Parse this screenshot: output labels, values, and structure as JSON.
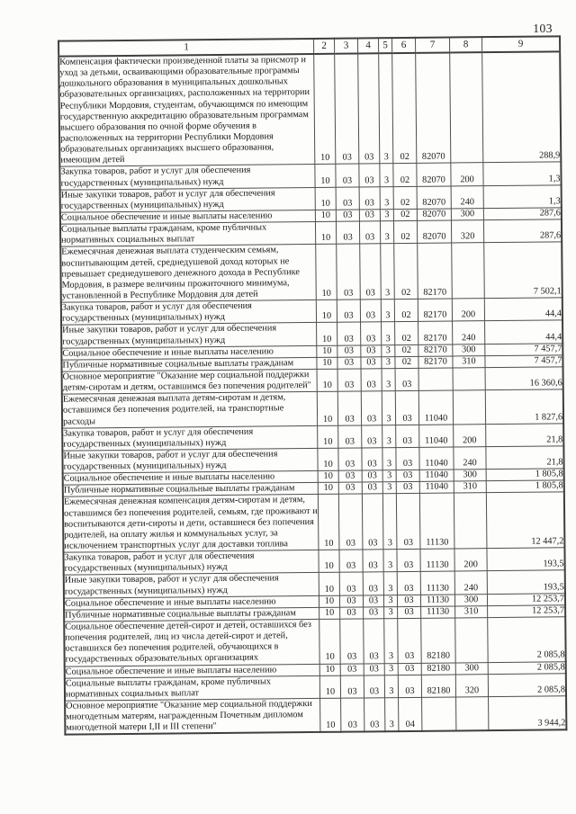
{
  "page": {
    "number": "103"
  },
  "table": {
    "columns": [
      "1",
      "2",
      "3",
      "4",
      "5",
      "6",
      "7",
      "8",
      "9"
    ],
    "rows": [
      {
        "label": "Компенсация фактически произведенной платы за присмотр и уход за детьми, осваивающими образовательные программы дошкольного образования в муниципальных дошкольных образовательных организациях, расположенных на территории Республики Мордовия, студентам, обучающимся по имеющим государственную аккредитацию образовательным программам высшего образования по очной форме обучения в расположенных на территории Республики Мордовия образовательных организациях высшего образования, имеющим детей",
        "c2": "10",
        "c3": "03",
        "c4": "03",
        "c5": "3",
        "c6": "02",
        "c7": "82070",
        "c8": "",
        "c9": "288,9"
      },
      {
        "label": "Закупка товаров, работ и услуг для обеспечения государственных (муниципальных) нужд",
        "c2": "10",
        "c3": "03",
        "c4": "03",
        "c5": "3",
        "c6": "02",
        "c7": "82070",
        "c8": "200",
        "c9": "1,3"
      },
      {
        "label": "Иные закупки товаров, работ и услуг для обеспечения государственных (муниципальных) нужд",
        "c2": "10",
        "c3": "03",
        "c4": "03",
        "c5": "3",
        "c6": "02",
        "c7": "82070",
        "c8": "240",
        "c9": "1,3"
      },
      {
        "label": "Социальное обеспечение и иные выплаты населению",
        "c2": "10",
        "c3": "03",
        "c4": "03",
        "c5": "3",
        "c6": "02",
        "c7": "82070",
        "c8": "300",
        "c9": "287,6"
      },
      {
        "label": "Социальные выплаты гражданам, кроме публичных нормативных социальных выплат",
        "c2": "10",
        "c3": "03",
        "c4": "03",
        "c5": "3",
        "c6": "02",
        "c7": "82070",
        "c8": "320",
        "c9": "287,6"
      },
      {
        "label": "Ежемесячная денежная выплата студенческим семьям, воспитывающим детей, среднедушевой доход которых не превышает среднедушевого денежного дохода в Республике Мордовия, в размере величины прожиточного минимума, установленной в Республике Мордовия для детей",
        "c2": "10",
        "c3": "03",
        "c4": "03",
        "c5": "3",
        "c6": "02",
        "c7": "82170",
        "c8": "",
        "c9": "7 502,1"
      },
      {
        "label": "Закупка товаров, работ и услуг для обеспечения государственных (муниципальных) нужд",
        "c2": "10",
        "c3": "03",
        "c4": "03",
        "c5": "3",
        "c6": "02",
        "c7": "82170",
        "c8": "200",
        "c9": "44,4"
      },
      {
        "label": "Иные закупки товаров, работ и услуг для обеспечения государственных (муниципальных) нужд",
        "c2": "10",
        "c3": "03",
        "c4": "03",
        "c5": "3",
        "c6": "02",
        "c7": "82170",
        "c8": "240",
        "c9": "44,4"
      },
      {
        "label": "Социальное обеспечение и иные выплаты населению",
        "c2": "10",
        "c3": "03",
        "c4": "03",
        "c5": "3",
        "c6": "02",
        "c7": "82170",
        "c8": "300",
        "c9": "7 457,7"
      },
      {
        "label": "Публичные нормативные социальные выплаты гражданам",
        "c2": "10",
        "c3": "03",
        "c4": "03",
        "c5": "3",
        "c6": "02",
        "c7": "82170",
        "c8": "310",
        "c9": "7 457,7"
      },
      {
        "label": "Основное мероприятие \"Оказание мер социальной поддержки детям-сиротам и детям, оставшимся без попечения родителей\"",
        "c2": "10",
        "c3": "03",
        "c4": "03",
        "c5": "3",
        "c6": "03",
        "c7": "",
        "c8": "",
        "c9": "16 360,6"
      },
      {
        "label": "Ежемесячная денежная выплата детям-сиротам и детям, оставшимся без попечения родителей, на транспортные расходы",
        "c2": "10",
        "c3": "03",
        "c4": "03",
        "c5": "3",
        "c6": "03",
        "c7": "11040",
        "c8": "",
        "c9": "1 827,6"
      },
      {
        "label": "Закупка товаров, работ и услуг для обеспечения государственных (муниципальных) нужд",
        "c2": "10",
        "c3": "03",
        "c4": "03",
        "c5": "3",
        "c6": "03",
        "c7": "11040",
        "c8": "200",
        "c9": "21,8"
      },
      {
        "label": "Иные закупки товаров, работ и услуг для обеспечения государственных (муниципальных) нужд",
        "c2": "10",
        "c3": "03",
        "c4": "03",
        "c5": "3",
        "c6": "03",
        "c7": "11040",
        "c8": "240",
        "c9": "21,8"
      },
      {
        "label": "Социальное обеспечение и иные выплаты населению",
        "c2": "10",
        "c3": "03",
        "c4": "03",
        "c5": "3",
        "c6": "03",
        "c7": "11040",
        "c8": "300",
        "c9": "1 805,8"
      },
      {
        "label": "Публичные нормативные социальные выплаты гражданам",
        "c2": "10",
        "c3": "03",
        "c4": "03",
        "c5": "3",
        "c6": "03",
        "c7": "11040",
        "c8": "310",
        "c9": "1 805,8"
      },
      {
        "label": "Ежемесячная денежная компенсация детям-сиротам и детям, оставшимся без попечения родителей, семьям, где проживают и воспитываются дети-сироты и дети, оставшиеся без попечения родителей, на оплату жилья и коммунальных услуг, за исключением транспортных услуг для доставки топлива",
        "c2": "10",
        "c3": "03",
        "c4": "03",
        "c5": "3",
        "c6": "03",
        "c7": "11130",
        "c8": "",
        "c9": "12 447,2"
      },
      {
        "label": "Закупка товаров, работ и услуг для обеспечения государственных (муниципальных) нужд",
        "c2": "10",
        "c3": "03",
        "c4": "03",
        "c5": "3",
        "c6": "03",
        "c7": "11130",
        "c8": "200",
        "c9": "193,5"
      },
      {
        "label": "Иные закупки товаров, работ и услуг для обеспечения государственных (муниципальных) нужд",
        "c2": "10",
        "c3": "03",
        "c4": "03",
        "c5": "3",
        "c6": "03",
        "c7": "11130",
        "c8": "240",
        "c9": "193,5"
      },
      {
        "label": "Социальное обеспечение и иные выплаты населению",
        "c2": "10",
        "c3": "03",
        "c4": "03",
        "c5": "3",
        "c6": "03",
        "c7": "11130",
        "c8": "300",
        "c9": "12 253,7"
      },
      {
        "label": "Публичные нормативные социальные выплаты гражданам",
        "c2": "10",
        "c3": "03",
        "c4": "03",
        "c5": "3",
        "c6": "03",
        "c7": "11130",
        "c8": "310",
        "c9": "12 253,7"
      },
      {
        "label": "Социальное обеспечение детей-сирот и детей, оставшихся без попечения родителей, лиц из числа детей-сирот и детей, оставшихся без попечения родителей, обучающихся в государственных образовательных организациях",
        "c2": "10",
        "c3": "03",
        "c4": "03",
        "c5": "3",
        "c6": "03",
        "c7": "82180",
        "c8": "",
        "c9": "2 085,8"
      },
      {
        "label": "Социальное обеспечение и иные выплаты населению",
        "c2": "10",
        "c3": "03",
        "c4": "03",
        "c5": "3",
        "c6": "03",
        "c7": "82180",
        "c8": "300",
        "c9": "2 085,8"
      },
      {
        "label": "Социальные выплаты гражданам, кроме публичных нормативных социальных выплат",
        "c2": "10",
        "c3": "03",
        "c4": "03",
        "c5": "3",
        "c6": "03",
        "c7": "82180",
        "c8": "320",
        "c9": "2 085,8"
      },
      {
        "label": "Основное мероприятие \"Оказание мер социальной поддержки многодетным матерям, награжденным Почетным дипломом многодетной матери I,II и III степени\"",
        "c2": "10",
        "c3": "03",
        "c4": "03",
        "c5": "3",
        "c6": "04",
        "c7": "",
        "c8": "",
        "c9": "3 944,2"
      }
    ]
  }
}
